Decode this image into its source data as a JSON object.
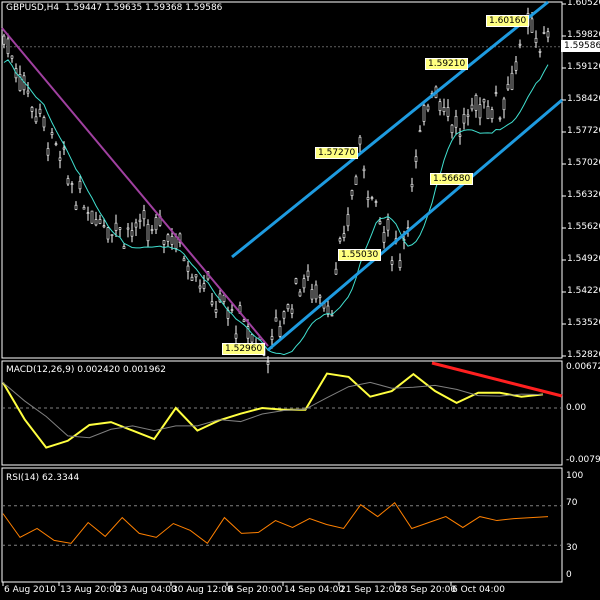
{
  "header": {
    "symbol": "GBPUSD,H4",
    "open": "1.59447",
    "high": "1.59635",
    "low": "1.59368",
    "close": "1.59586"
  },
  "price_axis": {
    "ticks": [
      "1.60520",
      "1.59820",
      "1.59120",
      "1.58420",
      "1.57720",
      "1.57020",
      "1.56320",
      "1.55620",
      "1.54920",
      "1.54220",
      "1.53520",
      "1.52820"
    ],
    "current": "1.59586"
  },
  "price_labels": [
    "1.52960",
    "1.55030",
    "1.57270",
    "1.56680",
    "1.59210",
    "1.60160"
  ],
  "macd": {
    "title": "MACD(12,26,9) 0.002420 0.001962",
    "ticks": [
      "0.006726",
      "0.00",
      "-0.00795"
    ]
  },
  "rsi": {
    "title": "RSI(14) 62.3344",
    "ticks": [
      "100",
      "70",
      "30",
      "0"
    ]
  },
  "time_axis": [
    "6 Aug 2010",
    "13 Aug 20:00",
    "23 Aug 04:00",
    "30 Aug 12:00",
    "6 Sep 20:00",
    "14 Sep 04:00",
    "21 Sep 12:00",
    "28 Sep 20:00",
    "6 Oct 04:00"
  ],
  "colors": {
    "candle": "#ffffff",
    "ma": "#40e0d0",
    "channel": "#1e9be0",
    "downtrend": "#a040a0",
    "macd": "#ffff40",
    "signal": "#808080",
    "divergence": "#ff2020",
    "rsi": "#ff8000"
  },
  "chart_data": {
    "type": "line",
    "price_path": [
      [
        0,
        1.598
      ],
      [
        9,
        1.58
      ],
      [
        19,
        1.562
      ],
      [
        29,
        1.556
      ],
      [
        42,
        1.555
      ],
      [
        53,
        1.54
      ],
      [
        66,
        1.5296
      ],
      [
        74,
        1.545
      ],
      [
        82,
        1.54
      ],
      [
        89,
        1.5727
      ],
      [
        95,
        1.555
      ],
      [
        99,
        1.5503
      ],
      [
        107,
        1.589
      ],
      [
        114,
        1.5768
      ],
      [
        119,
        1.584
      ],
      [
        124,
        1.583
      ],
      [
        131,
        1.6
      ],
      [
        136,
        1.5958
      ]
    ],
    "macd_values": [
      0.0045,
      -0.002,
      -0.007,
      -0.0058,
      -0.003,
      -0.0025,
      -0.004,
      -0.0055,
      0.0,
      -0.004,
      -0.0022,
      -0.001,
      0.0,
      -0.0003,
      -0.0003,
      0.0061,
      0.0055,
      0.002,
      0.003,
      0.006,
      0.003,
      0.0009,
      0.0027,
      0.0027,
      0.002,
      0.0024
    ],
    "rsi_values": [
      65,
      35,
      50,
      32,
      35,
      50,
      42,
      55,
      45,
      35,
      55,
      42,
      35,
      55,
      45,
      40,
      58,
      45,
      60,
      48,
      50,
      68,
      62,
      70,
      50,
      50,
      62,
      45,
      62,
      52,
      60,
      55,
      62
    ],
    "ylim_price": [
      1.5282,
      1.6052
    ],
    "ylim_macd": [
      -0.00795,
      0.006726
    ],
    "ylim_rsi": [
      0,
      100
    ]
  }
}
